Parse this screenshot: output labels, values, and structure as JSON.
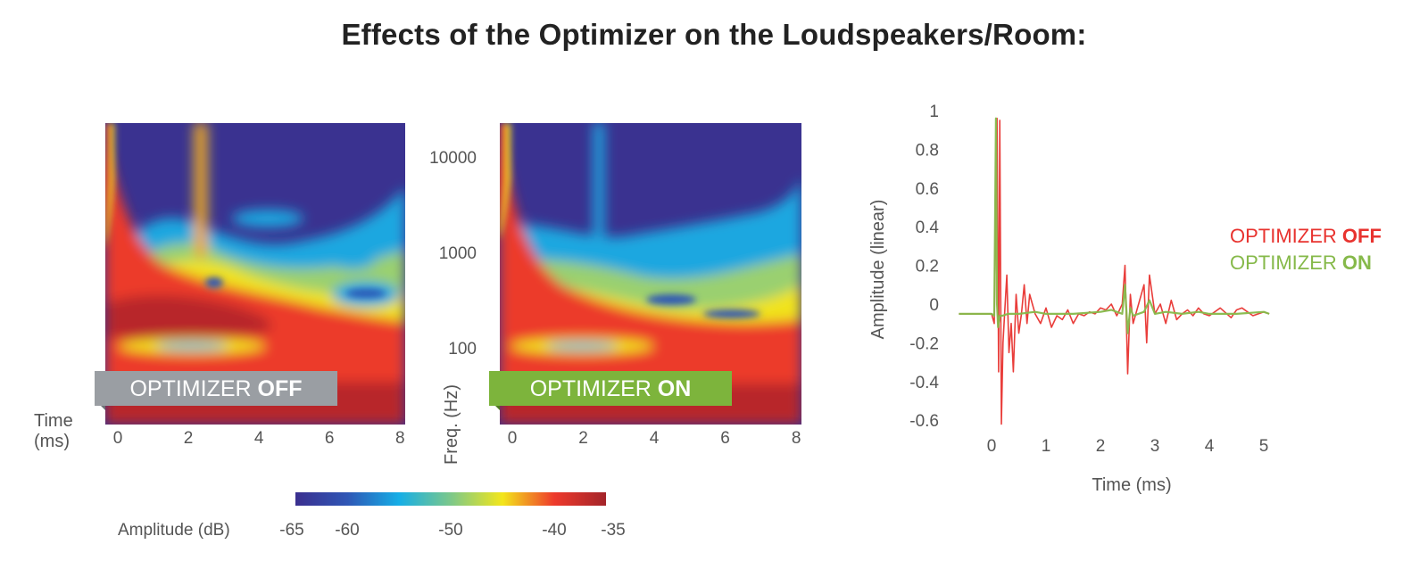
{
  "title": "Effects of the Optimizer on the Loudspeakers/Room:",
  "colors": {
    "off": "#e8332f",
    "on": "#86b94a",
    "banner_off": "#9a9ea3",
    "banner_on": "#7db43c"
  },
  "chart_data": [
    {
      "type": "heatmap",
      "banner_main": "OPTIMIZER ",
      "banner_bold": "OFF",
      "x_ticks": [
        "0",
        "2",
        "4",
        "6",
        "8"
      ],
      "xlim": [
        0,
        8.5
      ],
      "x_axis_label": "Time\n(ms)"
    },
    {
      "type": "heatmap",
      "banner_main": "OPTIMIZER ",
      "banner_bold": "ON",
      "x_ticks": [
        "0",
        "2",
        "4",
        "6",
        "8"
      ],
      "xlim": [
        0,
        8.5
      ],
      "y_ticks": [
        {
          "value": 10000,
          "label": "10000"
        },
        {
          "value": 1000,
          "label": "1000"
        },
        {
          "value": 100,
          "label": "100"
        }
      ],
      "y_axis_label": "Freq. (Hz)",
      "colorbar": {
        "label": "Amplitude (dB)",
        "range": [
          -65,
          -35
        ],
        "ticks": [
          "-65",
          "-60",
          "-50",
          "-40",
          "-35"
        ],
        "tick_values": [
          -65,
          -60,
          -50,
          -40,
          -35
        ],
        "stops": [
          {
            "value": -65,
            "color": "#3b2f8f"
          },
          {
            "value": -60,
            "color": "#2f56b5"
          },
          {
            "value": -55,
            "color": "#16aee6"
          },
          {
            "value": -50,
            "color": "#7cc88a"
          },
          {
            "value": -45,
            "color": "#f3e61b"
          },
          {
            "value": -40,
            "color": "#ee3a2c"
          },
          {
            "value": -35,
            "color": "#a3242a"
          }
        ]
      }
    },
    {
      "type": "line",
      "xlabel": "Time (ms)",
      "ylabel": "Amplitude (linear)",
      "xlim": [
        -0.6,
        5.15
      ],
      "ylim": [
        -0.6,
        1
      ],
      "x_ticks": [
        0,
        1,
        2,
        3,
        4,
        5
      ],
      "y_ticks": [
        {
          "value": 1,
          "label": "1"
        },
        {
          "value": 0.8,
          "label": "0.8"
        },
        {
          "value": 0.6,
          "label": "0.6"
        },
        {
          "value": 0.4,
          "label": "0.4"
        },
        {
          "value": 0.2,
          "label": "0.2"
        },
        {
          "value": 0,
          "label": "0"
        },
        {
          "value": -0.2,
          "label": "-0.2"
        },
        {
          "value": -0.4,
          "label": "-0.4"
        },
        {
          "value": -0.6,
          "label": "-0.6"
        }
      ],
      "legend": [
        {
          "main": "OPTIMIZER ",
          "bold": "OFF",
          "series": 0
        },
        {
          "main": "OPTIMIZER ",
          "bold": "ON",
          "series": 1
        }
      ],
      "series": [
        {
          "x": [
            -0.6,
            0.0,
            0.05,
            0.1,
            0.13,
            0.15,
            0.18,
            0.21,
            0.24,
            0.28,
            0.32,
            0.36,
            0.4,
            0.45,
            0.5,
            0.55,
            0.6,
            0.65,
            0.7,
            0.8,
            0.9,
            1.0,
            1.1,
            1.2,
            1.3,
            1.4,
            1.5,
            1.6,
            1.7,
            1.8,
            1.9,
            2.0,
            2.1,
            2.2,
            2.3,
            2.4,
            2.45,
            2.5,
            2.55,
            2.6,
            2.7,
            2.8,
            2.85,
            2.9,
            3.0,
            3.1,
            3.2,
            3.3,
            3.4,
            3.5,
            3.6,
            3.7,
            3.8,
            3.9,
            4.0,
            4.2,
            4.4,
            4.5,
            4.6,
            4.8,
            5.0,
            5.1
          ],
          "y": [
            -0.05,
            -0.05,
            -0.1,
            0.96,
            -0.35,
            0.95,
            -0.62,
            -0.2,
            -0.05,
            0.15,
            -0.25,
            -0.1,
            -0.35,
            0.05,
            -0.15,
            -0.05,
            0.1,
            -0.1,
            0.05,
            -0.05,
            -0.1,
            -0.02,
            -0.12,
            -0.06,
            -0.08,
            -0.03,
            -0.1,
            -0.05,
            -0.06,
            -0.04,
            -0.05,
            -0.02,
            -0.03,
            0.0,
            -0.06,
            0.0,
            0.2,
            -0.36,
            0.05,
            -0.1,
            0.0,
            0.1,
            -0.2,
            0.15,
            -0.05,
            0.0,
            -0.1,
            0.02,
            -0.08,
            -0.05,
            -0.03,
            -0.06,
            -0.02,
            -0.05,
            -0.06,
            -0.02,
            -0.07,
            -0.03,
            -0.02,
            -0.06,
            -0.04,
            -0.05
          ]
        },
        {
          "x": [
            -0.6,
            0.0,
            0.05,
            0.08,
            0.1,
            0.12,
            0.15,
            0.2,
            0.3,
            0.5,
            0.8,
            1.0,
            1.5,
            2.0,
            2.2,
            2.4,
            2.45,
            2.5,
            2.55,
            2.6,
            2.8,
            2.9,
            3.0,
            3.2,
            3.5,
            3.8,
            4.0,
            4.5,
            5.0,
            5.1
          ],
          "y": [
            -0.05,
            -0.05,
            -0.06,
            0.96,
            0.0,
            -0.12,
            -0.06,
            -0.06,
            -0.05,
            -0.05,
            -0.04,
            -0.05,
            -0.05,
            -0.04,
            -0.03,
            -0.05,
            0.1,
            -0.15,
            -0.02,
            -0.06,
            -0.04,
            0.02,
            -0.05,
            -0.04,
            -0.05,
            -0.04,
            -0.05,
            -0.05,
            -0.04,
            -0.05
          ]
        }
      ]
    }
  ]
}
